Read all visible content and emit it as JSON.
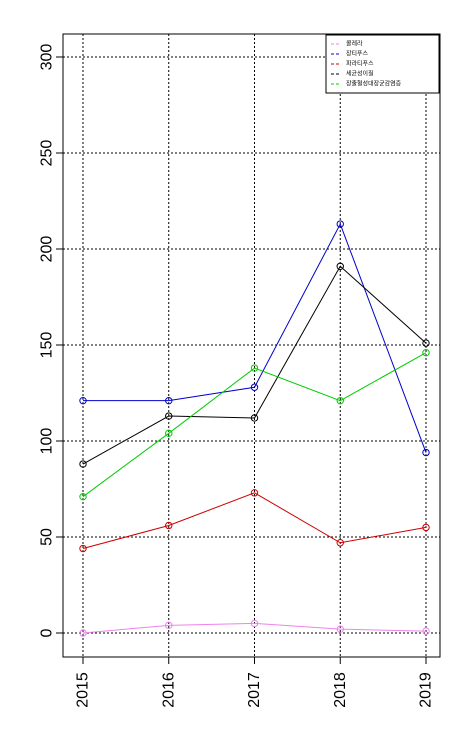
{
  "chart_data": {
    "type": "line",
    "title": "",
    "xlabel": "",
    "ylabel": "",
    "x": [
      2015,
      2016,
      2017,
      2018,
      2019
    ],
    "x_tick_labels": [
      "2015",
      "2016",
      "2017",
      "2018",
      "2019"
    ],
    "ylim": [
      0,
      300
    ],
    "y_ticks": [
      0,
      50,
      100,
      150,
      200,
      250,
      300
    ],
    "y_tick_labels": [
      "0",
      "50",
      "100",
      "150",
      "200",
      "250",
      "300"
    ],
    "grid": true,
    "legend_position": "top-right",
    "series": [
      {
        "name": "콜레라",
        "color": "#ee82ee",
        "values": [
          0,
          4,
          5,
          2,
          1
        ]
      },
      {
        "name": "장티푸스",
        "color": "#0000cd",
        "values": [
          121,
          121,
          128,
          213,
          94
        ]
      },
      {
        "name": "파라티푸스",
        "color": "#cc0000",
        "values": [
          44,
          56,
          73,
          47,
          55
        ]
      },
      {
        "name": "세균성이질",
        "color": "#000000",
        "values": [
          88,
          113,
          112,
          191,
          151
        ]
      },
      {
        "name": "장출혈성대장균감염증",
        "color": "#00cc00",
        "values": [
          71,
          104,
          138,
          121,
          146
        ]
      }
    ]
  }
}
